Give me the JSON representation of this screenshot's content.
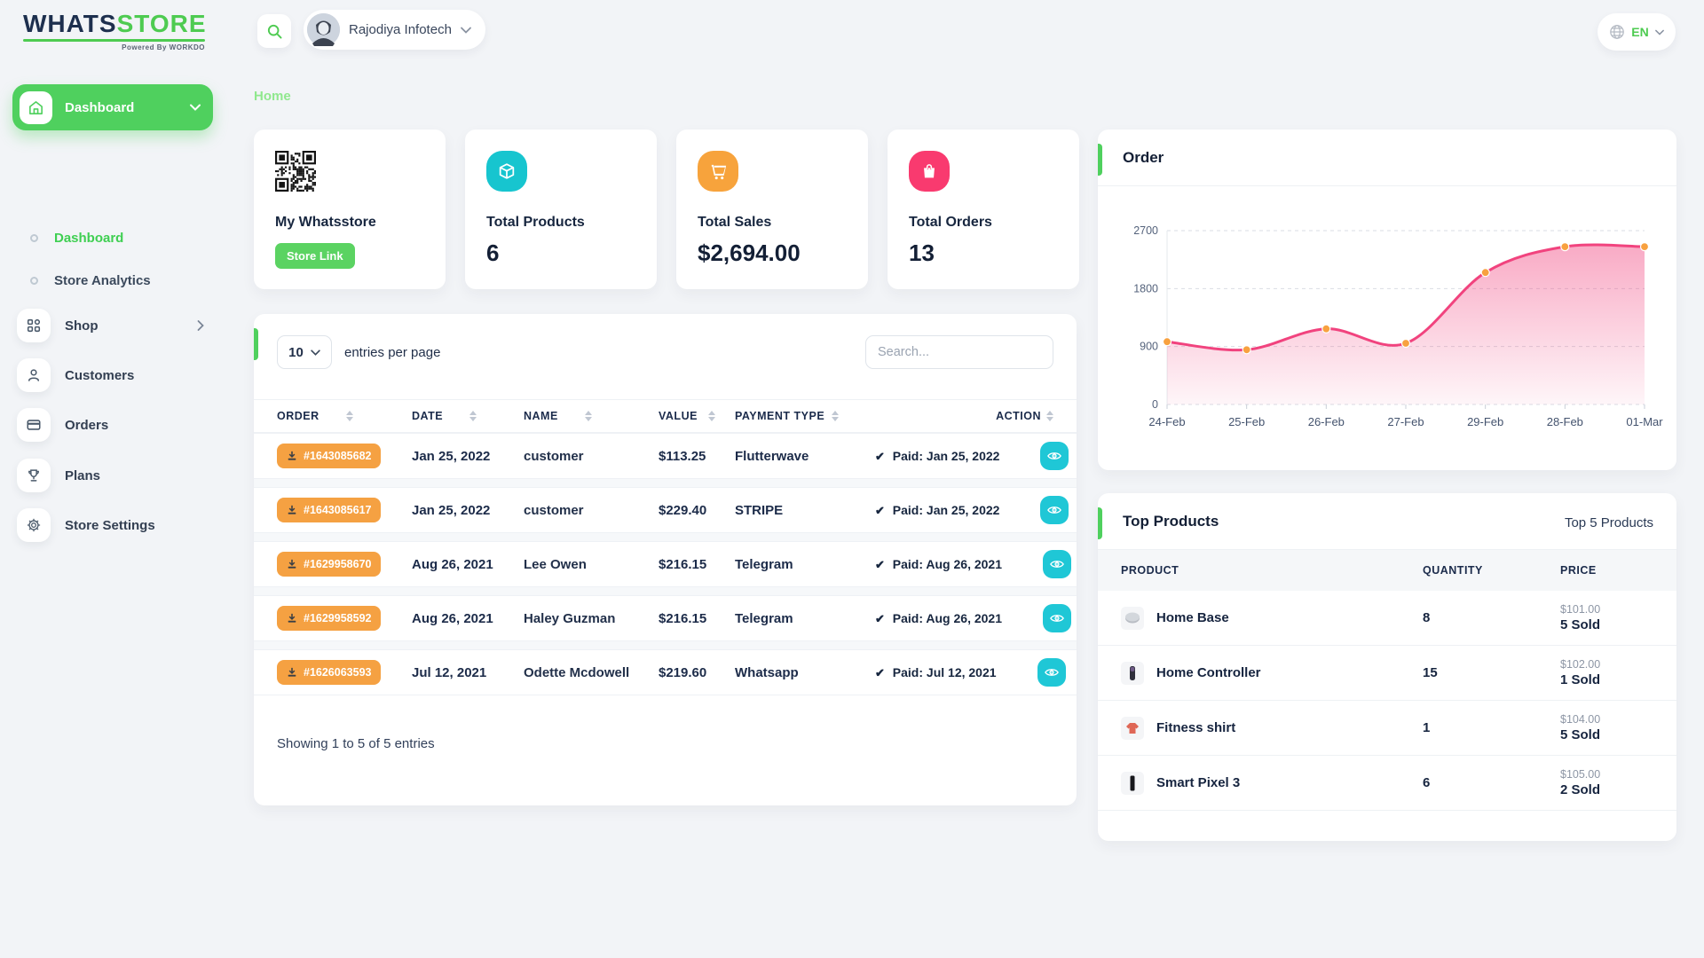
{
  "colors": {
    "green": "#4fd05e",
    "green_light": "#90e88e",
    "navy": "#1c2b49",
    "cyan": "#1fc7d6",
    "orange": "#f5a142",
    "pink": "#f93a6f",
    "chart_line": "#f1437e",
    "chart_marker": "#f8a13f"
  },
  "brand": {
    "part1": "WHATS",
    "part2": "STORE",
    "powered": "Powered By WORKDO"
  },
  "topbar": {
    "company": "Rajodiya Infotech",
    "language": "EN"
  },
  "sidebar": {
    "active_label": "Dashboard",
    "sub_items": [
      {
        "label": "Dashboard"
      },
      {
        "label": "Store Analytics"
      }
    ],
    "items": [
      {
        "label": "Shop",
        "icon": "grid-icon"
      },
      {
        "label": "Customers",
        "icon": "user-icon"
      },
      {
        "label": "Orders",
        "icon": "credit-card-icon"
      },
      {
        "label": "Plans",
        "icon": "trophy-icon"
      },
      {
        "label": "Store Settings",
        "icon": "gear-icon"
      }
    ]
  },
  "breadcrumb": {
    "home": "Home"
  },
  "stat_cards": {
    "store": {
      "title": "My Whatsstore",
      "button": "Store Link",
      "icon": "qr-code"
    },
    "products": {
      "title": "Total Products",
      "value": "6",
      "icon": "cube-icon"
    },
    "sales": {
      "title": "Total Sales",
      "value": "$2,694.00",
      "icon": "cart-icon"
    },
    "orders": {
      "title": "Total Orders",
      "value": "13",
      "icon": "bag-icon"
    }
  },
  "orders_table": {
    "page_size": "10",
    "entries_label": "entries per page",
    "search_placeholder": "Search...",
    "columns": {
      "order": "ORDER",
      "date": "DATE",
      "name": "NAME",
      "value": "VALUE",
      "payment": "PAYMENT TYPE",
      "action": "ACTION"
    },
    "rows": [
      {
        "order": "#1643085682",
        "date": "Jan 25, 2022",
        "name": "customer",
        "value": "$113.25",
        "payment": "Flutterwave",
        "paid": "Paid: Jan 25, 2022"
      },
      {
        "order": "#1643085617",
        "date": "Jan 25, 2022",
        "name": "customer",
        "value": "$229.40",
        "payment": "STRIPE",
        "paid": "Paid: Jan 25, 2022"
      },
      {
        "order": "#1629958670",
        "date": "Aug 26, 2021",
        "name": "Lee Owen",
        "value": "$216.15",
        "payment": "Telegram",
        "paid": "Paid: Aug 26, 2021"
      },
      {
        "order": "#1629958592",
        "date": "Aug 26, 2021",
        "name": "Haley Guzman",
        "value": "$216.15",
        "payment": "Telegram",
        "paid": "Paid: Aug 26, 2021"
      },
      {
        "order": "#1626063593",
        "date": "Jul 12, 2021",
        "name": "Odette Mcdowell",
        "value": "$219.60",
        "payment": "Whatsapp",
        "paid": "Paid: Jul 12, 2021"
      }
    ],
    "check_glyph": "✔",
    "footer": "Showing 1 to 5 of 5 entries"
  },
  "order_panel": {
    "title": "Order"
  },
  "chart_data": {
    "type": "area",
    "title": "Order",
    "x": [
      "24-Feb",
      "25-Feb",
      "26-Feb",
      "27-Feb",
      "29-Feb",
      "28-Feb",
      "01-Mar"
    ],
    "series": [
      {
        "name": "Order",
        "values": [
          975,
          850,
          1175,
          950,
          2050,
          2450,
          2450
        ]
      }
    ],
    "ylim": [
      0,
      2700
    ],
    "yticks": [
      0,
      900,
      1800,
      2700
    ],
    "grid": "horizontal-dashed",
    "legend": "none",
    "line_color": "#f1437e",
    "marker_color": "#f8a13f"
  },
  "top_products": {
    "title": "Top Products",
    "link": "Top 5 Products",
    "columns": {
      "product": "PRODUCT",
      "quantity": "QUANTITY",
      "price": "PRICE"
    },
    "rows": [
      {
        "name": "Home Base",
        "quantity": "8",
        "price": "$101.00",
        "sold": "5 Sold"
      },
      {
        "name": "Home Controller",
        "quantity": "15",
        "price": "$102.00",
        "sold": "1 Sold"
      },
      {
        "name": "Fitness shirt",
        "quantity": "1",
        "price": "$104.00",
        "sold": "5 Sold"
      },
      {
        "name": "Smart Pixel 3",
        "quantity": "6",
        "price": "$105.00",
        "sold": "2 Sold"
      }
    ]
  }
}
